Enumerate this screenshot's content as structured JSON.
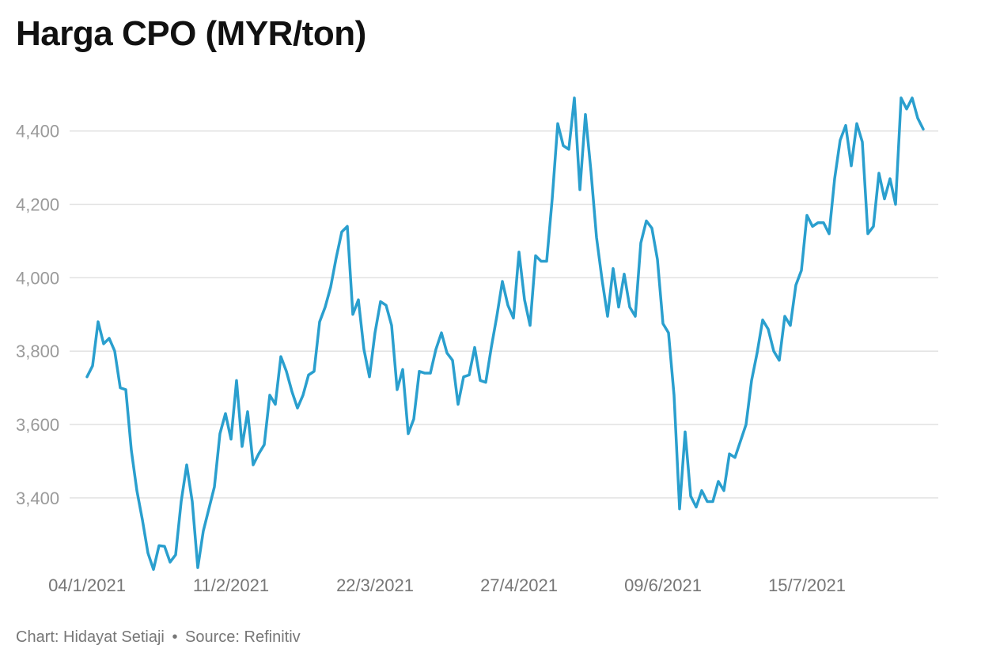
{
  "chart_data": {
    "type": "line",
    "title": "Harga CPO (MYR/ton)",
    "xlabel": "",
    "ylabel": "",
    "ylim": [
      3180,
      4520
    ],
    "y_ticks": [
      3400,
      3600,
      3800,
      4000,
      4200,
      4400
    ],
    "y_tick_labels": [
      "3,400",
      "3,600",
      "3,800",
      "4,000",
      "4,200",
      "4,400"
    ],
    "x_tick_labels": [
      "04/1/2021",
      "11/2/2021",
      "22/3/2021",
      "27/4/2021",
      "09/6/2021",
      "15/7/2021"
    ],
    "x_tick_index": [
      0,
      26,
      52,
      78,
      104,
      130
    ],
    "grid": true,
    "line_color": "#2a9fce",
    "series": [
      {
        "values": [
          3730,
          3760,
          3880,
          3820,
          3835,
          3800,
          3700,
          3695,
          3530,
          3420,
          3340,
          3250,
          3205,
          3270,
          3268,
          3225,
          3245,
          3390,
          3490,
          3390,
          3210,
          3310,
          3370,
          3430,
          3575,
          3630,
          3560,
          3720,
          3540,
          3635,
          3490,
          3520,
          3545,
          3680,
          3655,
          3785,
          3745,
          3690,
          3645,
          3680,
          3735,
          3745,
          3880,
          3920,
          3975,
          4055,
          4125,
          4140,
          3900,
          3940,
          3805,
          3730,
          3850,
          3935,
          3925,
          3870,
          3695,
          3750,
          3575,
          3615,
          3745,
          3740,
          3740,
          3805,
          3850,
          3795,
          3775,
          3655,
          3730,
          3735,
          3810,
          3720,
          3715,
          3810,
          3895,
          3990,
          3925,
          3890,
          4070,
          3940,
          3870,
          4060,
          4045,
          4045,
          4215,
          4420,
          4360,
          4350,
          4490,
          4240,
          4445,
          4290,
          4110,
          3995,
          3895,
          4025,
          3920,
          4010,
          3920,
          3895,
          4095,
          4155,
          4135,
          4050,
          3875,
          3850,
          3680,
          3370,
          3580,
          3405,
          3375,
          3420,
          3390,
          3390,
          3445,
          3420,
          3520,
          3510,
          3555,
          3600,
          3720,
          3795,
          3885,
          3860,
          3800,
          3775,
          3895,
          3870,
          3980,
          4020,
          4170,
          4140,
          4150,
          4150,
          4120,
          4270,
          4375,
          4415,
          4305,
          4420,
          4370,
          4120,
          4140,
          4285,
          4215,
          4270,
          4200,
          4490,
          4460,
          4490,
          4435,
          4405
        ]
      }
    ]
  },
  "footer": {
    "chart_by": "Chart: Hidayat Setiaji",
    "separator": "•",
    "source": "Source: Refinitiv"
  }
}
